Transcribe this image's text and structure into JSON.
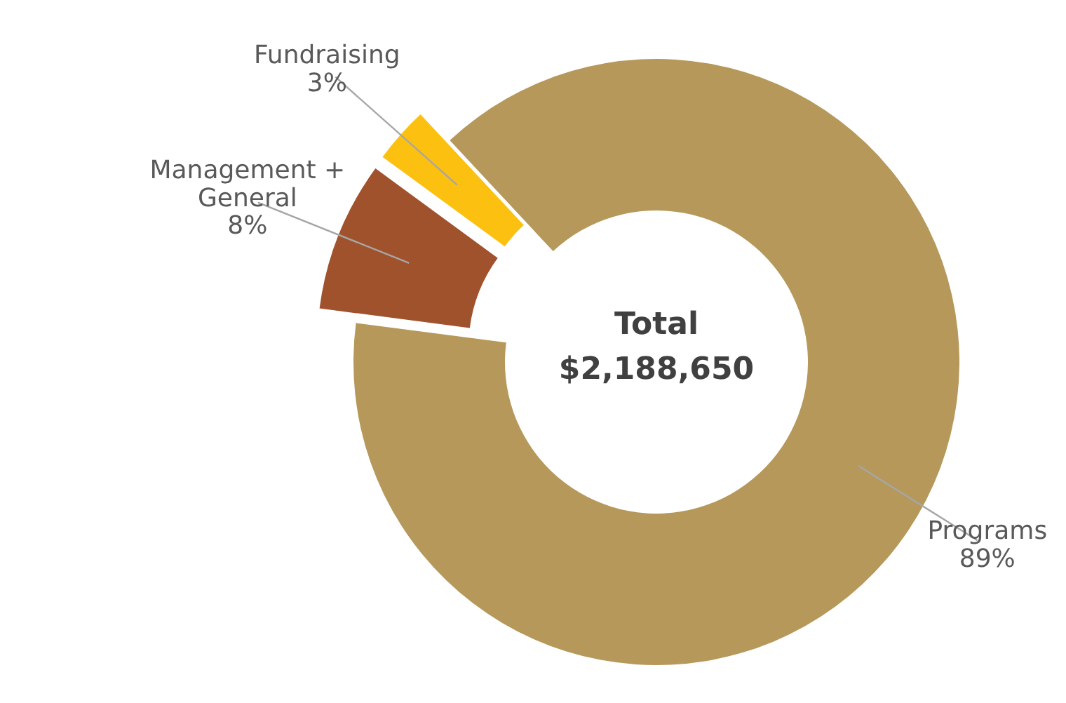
{
  "chart_data": {
    "type": "donut",
    "categories": [
      "Programs",
      "Management + General",
      "Fundraising"
    ],
    "values": [
      89,
      8,
      3
    ],
    "colors": [
      "#b5985a",
      "#a0522d",
      "#fcc010"
    ],
    "value_labels": [
      "89%",
      "8%",
      "3%"
    ],
    "annotations": [
      "Total",
      "$2,188,650"
    ]
  }
}
